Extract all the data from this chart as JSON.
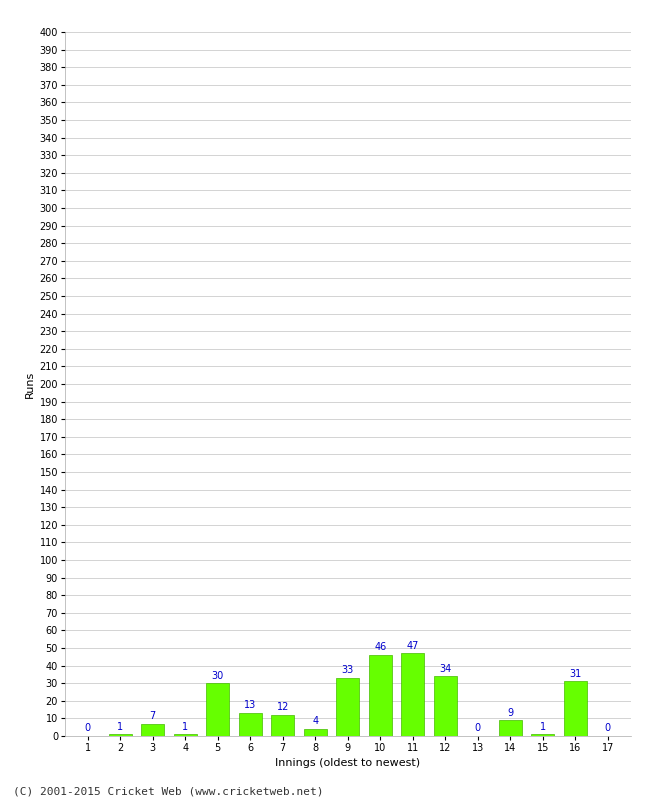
{
  "xlabel": "Innings (oldest to newest)",
  "ylabel": "Runs",
  "categories": [
    1,
    2,
    3,
    4,
    5,
    6,
    7,
    8,
    9,
    10,
    11,
    12,
    13,
    14,
    15,
    16,
    17
  ],
  "values": [
    0,
    1,
    7,
    1,
    30,
    13,
    12,
    4,
    33,
    46,
    47,
    34,
    0,
    9,
    1,
    31,
    0
  ],
  "bar_color": "#66ff00",
  "bar_edge_color": "#44bb00",
  "label_color": "#0000cc",
  "ylim": [
    0,
    400
  ],
  "background_color": "#ffffff",
  "grid_color": "#cccccc",
  "footer": "(C) 2001-2015 Cricket Web (www.cricketweb.net)",
  "label_fontsize": 7,
  "axis_label_fontsize": 8,
  "tick_fontsize": 7,
  "footer_fontsize": 8
}
